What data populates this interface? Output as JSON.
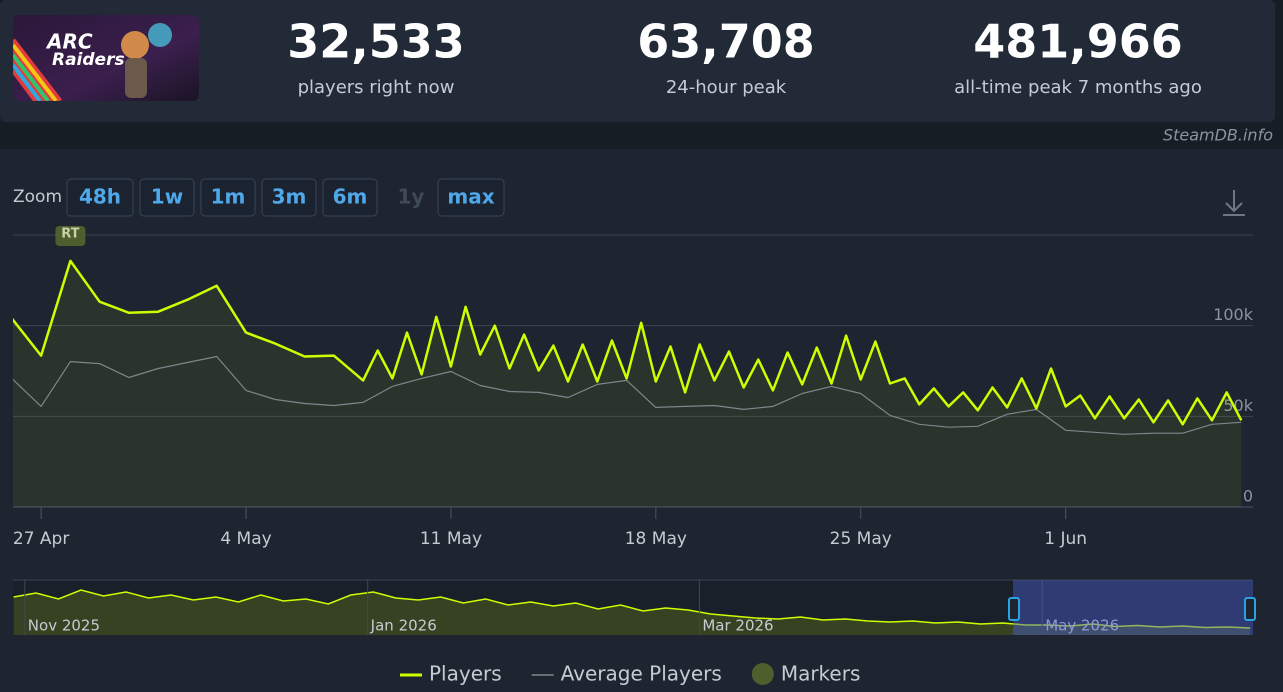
{
  "header": {
    "logo": [
      "ARC",
      "Raiders"
    ],
    "stats": [
      {
        "value": "32,533",
        "label": "players right now"
      },
      {
        "value": "63,708",
        "label": "24-hour peak"
      },
      {
        "value": "481,966",
        "label": "all-time peak 7 months ago"
      }
    ]
  },
  "credit": "SteamDB.info",
  "zoom": {
    "label": "Zoom",
    "buttons": [
      {
        "label": "48h",
        "enabled": true
      },
      {
        "label": "1w",
        "enabled": true
      },
      {
        "label": "1m",
        "enabled": true
      },
      {
        "label": "3m",
        "enabled": true
      },
      {
        "label": "6m",
        "enabled": true
      },
      {
        "label": "1y",
        "enabled": false
      },
      {
        "label": "max",
        "enabled": true
      }
    ]
  },
  "chart_data": [
    {
      "type": "line",
      "xlim": [
        -0.96,
        41.4
      ],
      "ylim": [
        0,
        150000
      ],
      "xticks": [
        {
          "value": 0,
          "label": "27 Apr"
        },
        {
          "value": 7,
          "label": "4 May"
        },
        {
          "value": 14,
          "label": "11 May"
        },
        {
          "value": 21,
          "label": "18 May"
        },
        {
          "value": 28,
          "label": "25 May"
        },
        {
          "value": 35,
          "label": "1 Jun"
        }
      ],
      "yticks": [
        0,
        {
          "value": 50000,
          "label": "50k"
        },
        {
          "value": 100000,
          "label": "100k"
        }
      ],
      "grid": true,
      "series": [
        {
          "name": "Players",
          "color": "#ccff00",
          "fill": true,
          "x": [
            -1,
            0,
            1,
            2,
            3,
            4,
            5,
            6,
            7,
            8,
            9,
            10,
            11,
            11.5,
            12,
            12.5,
            13,
            13.5,
            14,
            14.5,
            15,
            15.5,
            16,
            16.5,
            17,
            17.5,
            18,
            18.5,
            19,
            19.5,
            20,
            20.5,
            21,
            21.5,
            22,
            22.5,
            23,
            23.5,
            24,
            24.5,
            25,
            25.5,
            26,
            26.5,
            27,
            27.5,
            28,
            28.5,
            29,
            29.5,
            30,
            30.5,
            31,
            31.5,
            32,
            32.5,
            33,
            33.5,
            34,
            34.5,
            35,
            35.5,
            36,
            36.5,
            37,
            37.5,
            38,
            38.5,
            39,
            39.5,
            40,
            40.5,
            41
          ],
          "values": [
            104000,
            83500,
            135700,
            113200,
            107100,
            107700,
            114300,
            122000,
            96200,
            90100,
            83000,
            83500,
            69800,
            86300,
            70900,
            96200,
            73100,
            104900,
            77500,
            110400,
            84100,
            100000,
            76400,
            95100,
            75300,
            89000,
            69200,
            89600,
            69200,
            91800,
            70900,
            101600,
            69200,
            88500,
            63200,
            89600,
            69800,
            85700,
            65900,
            81300,
            64300,
            85200,
            67600,
            87900,
            68100,
            94500,
            70300,
            91200,
            68100,
            70900,
            56600,
            65400,
            55500,
            63200,
            53300,
            65900,
            54900,
            70900,
            54400,
            76400,
            55500,
            61500,
            48900,
            61000,
            48900,
            59300,
            46700,
            58800,
            45600,
            59900,
            47800,
            63200,
            47800
          ]
        },
        {
          "name": "Average Players",
          "color": "#80858c",
          "fill": false,
          "x": [
            -1,
            0,
            1,
            2,
            3,
            4,
            5,
            6,
            7,
            8,
            9,
            10,
            11,
            12,
            13,
            14,
            15,
            16,
            17,
            18,
            19,
            20,
            21,
            22,
            23,
            24,
            25,
            26,
            27,
            28,
            29,
            30,
            31,
            32,
            33,
            34,
            35,
            36,
            37,
            38,
            39,
            40,
            41
          ],
          "values": [
            70900,
            55500,
            80200,
            79100,
            71400,
            76400,
            79700,
            83000,
            64300,
            59300,
            57100,
            56000,
            57700,
            66500,
            70900,
            74700,
            67000,
            63700,
            63200,
            60400,
            67600,
            69800,
            54900,
            55500,
            56000,
            53800,
            55500,
            62600,
            66500,
            62600,
            50500,
            45600,
            44000,
            44500,
            51100,
            53800,
            42300,
            41200,
            40100,
            40700,
            40700,
            45600,
            46700
          ]
        }
      ],
      "markers": {
        "name": "Markers",
        "color": "#4e5e2c",
        "items": [
          {
            "x": 1,
            "label": "RT"
          }
        ]
      }
    },
    {
      "type": "area",
      "xlim": [
        -2.1,
        218.5
      ],
      "ylim": [
        0,
        550000
      ],
      "xticks": [
        {
          "value": 0,
          "label": "Nov 2025"
        },
        {
          "value": 61,
          "label": "Jan 2026"
        },
        {
          "value": 120,
          "label": "Mar 2026"
        },
        {
          "value": 181,
          "label": "May 2026"
        }
      ],
      "series": [
        {
          "color": "#ccff00",
          "x": [
            -2,
            2,
            6,
            10,
            14,
            18,
            22,
            26,
            30,
            34,
            38,
            42,
            46,
            50,
            54,
            58,
            62,
            66,
            70,
            74,
            78,
            82,
            86,
            90,
            94,
            98,
            102,
            106,
            110,
            114,
            118,
            122,
            126,
            130,
            134,
            138,
            142,
            146,
            150,
            154,
            158,
            162,
            166,
            170,
            174,
            178,
            182,
            186,
            190,
            194,
            198,
            202,
            206,
            210,
            214,
            218
          ],
          "values": [
            380000,
            420000,
            360000,
            450000,
            390000,
            430000,
            370000,
            400000,
            350000,
            380000,
            330000,
            400000,
            340000,
            360000,
            310000,
            400000,
            430000,
            370000,
            350000,
            380000,
            320000,
            360000,
            300000,
            330000,
            290000,
            320000,
            260000,
            300000,
            240000,
            270000,
            250000,
            210000,
            190000,
            170000,
            160000,
            180000,
            150000,
            160000,
            140000,
            130000,
            140000,
            120000,
            130000,
            110000,
            120000,
            100000,
            100000,
            90000,
            110000,
            85000,
            95000,
            80000,
            90000,
            75000,
            80000,
            70000
          ]
        }
      ]
    }
  ]
}
